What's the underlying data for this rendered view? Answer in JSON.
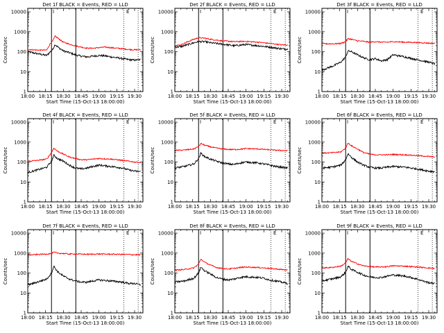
{
  "page": {
    "background": "#ffffff",
    "frame_color": "#000000"
  },
  "colors": {
    "events": "#000000",
    "lld": "#ff0000"
  },
  "x_axis": {
    "label": "Start Time (15-Oct-13 18:00:00)",
    "ticks": [
      "18:00",
      "18:15",
      "18:30",
      "18:45",
      "19:00",
      "19:15",
      "19:30"
    ],
    "range_minutes": [
      0,
      97
    ]
  },
  "y_axis": {
    "label": "Counts/sec",
    "scale": "log",
    "ticks": [
      "1",
      "10",
      "100",
      "1000",
      "10000"
    ],
    "range": [
      1,
      15000
    ]
  },
  "markers": {
    "solid_minutes": [
      20,
      40.5
    ],
    "dotted_minutes": [
      81,
      93
    ],
    "letter_labels": [
      {
        "text": "I",
        "minute": 21
      },
      {
        "text": "E",
        "minute": 83
      }
    ]
  },
  "chart_data": [
    {
      "type": "line",
      "title": "Det 1f BLACK = Events, RED = LLD",
      "x_minutes": [
        0,
        8,
        16,
        19,
        21,
        23,
        26,
        30,
        35,
        40,
        45,
        50,
        55,
        60,
        65,
        70,
        75,
        80,
        85,
        90,
        95
      ],
      "series": [
        {
          "name": "Events",
          "values": [
            100,
            80,
            65,
            100,
            130,
            230,
            160,
            110,
            90,
            70,
            60,
            55,
            60,
            65,
            62,
            55,
            50,
            45,
            40,
            38,
            40
          ]
        },
        {
          "name": "LLD",
          "values": [
            130,
            120,
            120,
            260,
            340,
            600,
            450,
            300,
            240,
            200,
            170,
            150,
            150,
            160,
            170,
            160,
            150,
            140,
            130,
            125,
            125
          ]
        }
      ]
    },
    {
      "type": "line",
      "title": "Det 2f BLACK = Events, RED = LLD",
      "x_minutes": [
        0,
        5,
        10,
        15,
        20,
        25,
        30,
        40,
        50,
        60,
        70,
        80,
        90,
        95
      ],
      "series": [
        {
          "name": "Events",
          "values": [
            170,
            180,
            220,
            270,
            320,
            320,
            280,
            240,
            200,
            230,
            200,
            170,
            140,
            135
          ]
        },
        {
          "name": "LLD",
          "values": [
            200,
            220,
            300,
            400,
            500,
            480,
            420,
            350,
            320,
            330,
            300,
            260,
            220,
            220
          ]
        }
      ]
    },
    {
      "type": "line",
      "title": "Det 3f BLACK = Events, RED = LLD",
      "x_minutes": [
        0,
        10,
        16,
        20,
        22,
        25,
        30,
        35,
        40,
        45,
        50,
        55,
        60,
        70,
        80,
        85,
        90,
        95
      ],
      "series": [
        {
          "name": "Events",
          "values": [
            12,
            20,
            30,
            55,
            110,
            100,
            70,
            50,
            40,
            45,
            35,
            40,
            70,
            55,
            40,
            35,
            30,
            25
          ]
        },
        {
          "name": "LLD",
          "values": [
            250,
            250,
            260,
            320,
            450,
            420,
            350,
            330,
            300,
            320,
            300,
            300,
            320,
            300,
            290,
            280,
            270,
            260
          ]
        }
      ]
    },
    {
      "type": "line",
      "title": "Det 4f BLACK = Events, RED = LLD",
      "x_minutes": [
        0,
        8,
        16,
        20,
        22,
        25,
        30,
        35,
        40,
        45,
        50,
        55,
        60,
        70,
        75,
        80,
        85,
        90,
        95
      ],
      "series": [
        {
          "name": "Events",
          "values": [
            30,
            40,
            55,
            110,
            220,
            150,
            110,
            70,
            50,
            45,
            50,
            60,
            70,
            60,
            55,
            50,
            40,
            35,
            33
          ]
        },
        {
          "name": "LLD",
          "values": [
            110,
            120,
            140,
            300,
            500,
            350,
            250,
            180,
            150,
            130,
            130,
            140,
            150,
            140,
            130,
            120,
            110,
            100,
            95
          ]
        }
      ]
    },
    {
      "type": "line",
      "title": "Det 5f BLACK = Events, RED = LLD",
      "x_minutes": [
        0,
        8,
        16,
        20,
        22,
        25,
        30,
        35,
        40,
        45,
        50,
        55,
        60,
        70,
        75,
        80,
        85,
        90,
        95
      ],
      "series": [
        {
          "name": "Events",
          "values": [
            50,
            60,
            80,
            150,
            280,
            190,
            140,
            110,
            90,
            80,
            75,
            90,
            100,
            90,
            80,
            70,
            60,
            55,
            50
          ]
        },
        {
          "name": "LLD",
          "values": [
            380,
            400,
            450,
            600,
            850,
            700,
            580,
            500,
            450,
            430,
            420,
            440,
            470,
            450,
            430,
            410,
            390,
            380,
            370
          ]
        }
      ]
    },
    {
      "type": "line",
      "title": "Det 6f BLACK = Events, RED = LLD",
      "x_minutes": [
        0,
        8,
        16,
        20,
        22,
        25,
        30,
        35,
        40,
        45,
        50,
        55,
        60,
        70,
        75,
        80,
        85,
        90,
        95
      ],
      "series": [
        {
          "name": "Events",
          "values": [
            50,
            55,
            70,
            130,
            260,
            170,
            100,
            70,
            55,
            50,
            50,
            55,
            60,
            55,
            50,
            45,
            40,
            35,
            33
          ]
        },
        {
          "name": "LLD",
          "values": [
            280,
            290,
            320,
            500,
            900,
            650,
            450,
            300,
            250,
            230,
            230,
            230,
            240,
            230,
            220,
            210,
            200,
            190,
            180
          ]
        }
      ]
    },
    {
      "type": "line",
      "title": "Det 7f BLACK = Events, RED = LLD",
      "x_minutes": [
        0,
        8,
        16,
        20,
        22,
        25,
        30,
        35,
        40,
        45,
        50,
        55,
        60,
        70,
        80,
        85,
        90,
        95
      ],
      "series": [
        {
          "name": "Events",
          "values": [
            25,
            35,
            50,
            100,
            220,
            120,
            70,
            50,
            40,
            35,
            35,
            40,
            45,
            40,
            35,
            30,
            30,
            25
          ]
        },
        {
          "name": "LLD",
          "values": [
            800,
            850,
            900,
            950,
            1100,
            1000,
            950,
            900,
            900,
            880,
            870,
            880,
            900,
            880,
            860,
            850,
            830,
            820
          ]
        }
      ]
    },
    {
      "type": "line",
      "title": "Det 8f BLACK = Events, RED = LLD",
      "x_minutes": [
        0,
        8,
        16,
        20,
        22,
        25,
        30,
        35,
        40,
        45,
        50,
        55,
        60,
        70,
        75,
        80,
        85,
        90,
        95
      ],
      "series": [
        {
          "name": "Events",
          "values": [
            35,
            40,
            55,
            100,
            200,
            130,
            90,
            60,
            50,
            45,
            50,
            60,
            65,
            60,
            55,
            45,
            40,
            35,
            30
          ]
        },
        {
          "name": "LLD",
          "values": [
            140,
            150,
            180,
            280,
            500,
            350,
            250,
            190,
            170,
            160,
            170,
            190,
            200,
            190,
            180,
            170,
            160,
            150,
            140
          ]
        }
      ]
    },
    {
      "type": "line",
      "title": "Det 9f BLACK = Events, RED = LLD",
      "x_minutes": [
        0,
        8,
        16,
        20,
        22,
        25,
        30,
        35,
        40,
        45,
        50,
        55,
        60,
        70,
        75,
        80,
        85,
        90,
        95
      ],
      "series": [
        {
          "name": "Events",
          "values": [
            40,
            50,
            65,
            110,
            220,
            150,
            110,
            80,
            65,
            60,
            60,
            70,
            80,
            70,
            60,
            50,
            40,
            33,
            30
          ]
        },
        {
          "name": "LLD",
          "values": [
            180,
            190,
            220,
            320,
            520,
            380,
            290,
            230,
            210,
            200,
            200,
            210,
            230,
            220,
            210,
            200,
            190,
            180,
            170
          ]
        }
      ]
    }
  ]
}
